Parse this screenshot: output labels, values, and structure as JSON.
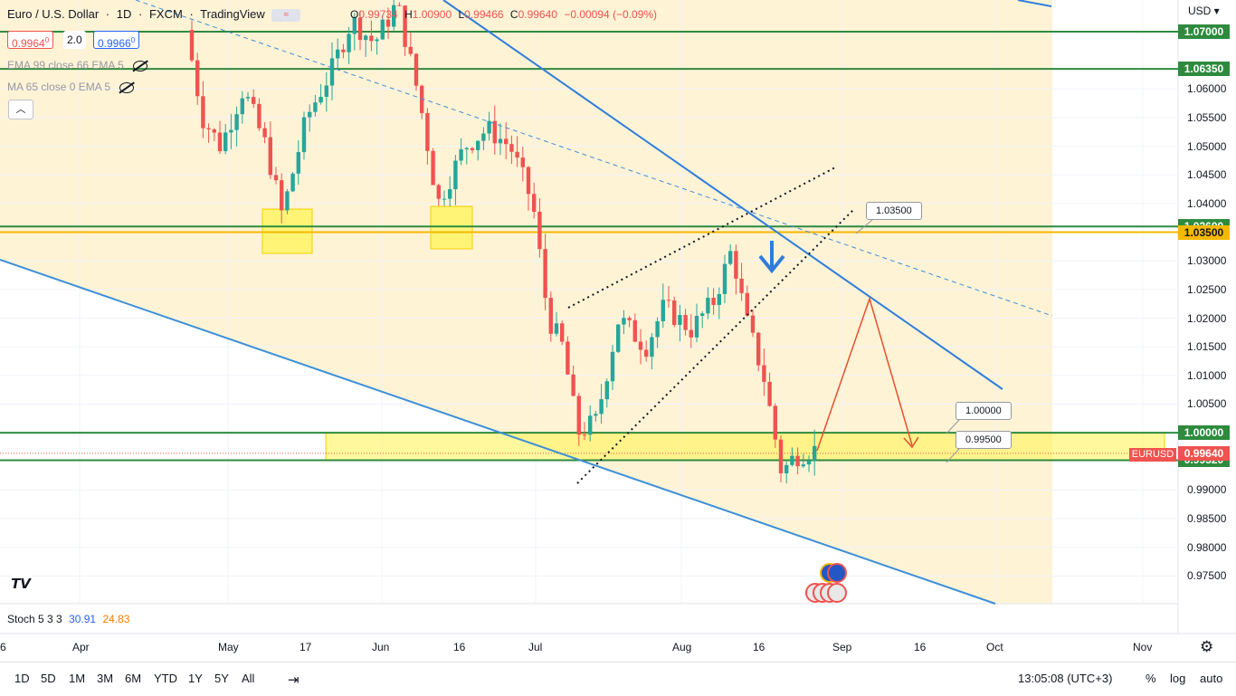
{
  "header": {
    "symbol": "Euro / U.S. Dollar",
    "interval": "1D",
    "exchange": "FXCM",
    "platform": "TradingView",
    "ohlc": {
      "o_label": "O",
      "o": "0.99734",
      "h_label": "H",
      "h": "1.00900",
      "l_label": "L",
      "l": "0.99466",
      "c_label": "C",
      "c": "0.99640",
      "change": "−0.00094 (−0.09%)"
    }
  },
  "quote": {
    "bid": "0.9964",
    "bid_sup": "0",
    "spread": "2.0",
    "ask": "0.9966",
    "ask_sup": "0"
  },
  "indicators": [
    {
      "label": "EMA 99 close 66 EMA 5"
    },
    {
      "label": "MA 65 close 0 EMA 5"
    }
  ],
  "currency": "USD",
  "price_axis": {
    "ticks": [
      "1.06000",
      "1.05500",
      "1.05000",
      "1.04500",
      "1.04000",
      "1.03000",
      "1.02500",
      "1.02000",
      "1.01500",
      "1.01000",
      "1.00500",
      "0.99000",
      "0.98500",
      "0.98000",
      "0.97500"
    ],
    "tick_values": [
      1.06,
      1.055,
      1.05,
      1.045,
      1.04,
      1.03,
      1.025,
      1.02,
      1.015,
      1.01,
      1.005,
      0.99,
      0.985,
      0.98,
      0.975
    ],
    "levels": [
      {
        "label": "1.07000",
        "value": 1.07,
        "color": "#2e8b3e"
      },
      {
        "label": "1.06350",
        "value": 1.0635,
        "color": "#2e8b3e"
      },
      {
        "label": "1.03600",
        "value": 1.036,
        "color": "#2e8b3e"
      },
      {
        "label": "1.03500",
        "value": 1.035,
        "color": "#f5b800"
      },
      {
        "label": "1.00000",
        "value": 1.0,
        "color": "#2e8b3e"
      },
      {
        "label": "0.99520",
        "value": 0.9952,
        "color": "#2e8b3e"
      }
    ],
    "current": {
      "symbol": "EURUSD",
      "price": "0.99640",
      "value": 0.9964,
      "color": "#ef5350"
    }
  },
  "time_axis": {
    "ticks": [
      "6",
      "Apr",
      "May",
      "17",
      "Jun",
      "16",
      "Jul",
      "Aug",
      "16",
      "Sep",
      "16",
      "Oct",
      "Nov"
    ]
  },
  "callouts": [
    {
      "text": "1.03500"
    },
    {
      "text": "1.00000"
    },
    {
      "text": "0.99500"
    }
  ],
  "stoch": {
    "label": "Stoch 5 3 3",
    "k": "30.91",
    "d": "24.83",
    "k_color": "#2962ff",
    "d_color": "#f57c00"
  },
  "bottom": {
    "ranges": [
      "1D",
      "5D",
      "1M",
      "3M",
      "6M",
      "YTD",
      "1Y",
      "5Y",
      "All"
    ],
    "clock": "13:05:08 (UTC+3)",
    "percent": "%",
    "log": "log",
    "auto": "auto"
  },
  "colors": {
    "up": "#26a69a",
    "down": "#ef5350",
    "zone": "#fff3d6",
    "trend": "#2f7ddb",
    "arrow": "#e8502e"
  }
}
